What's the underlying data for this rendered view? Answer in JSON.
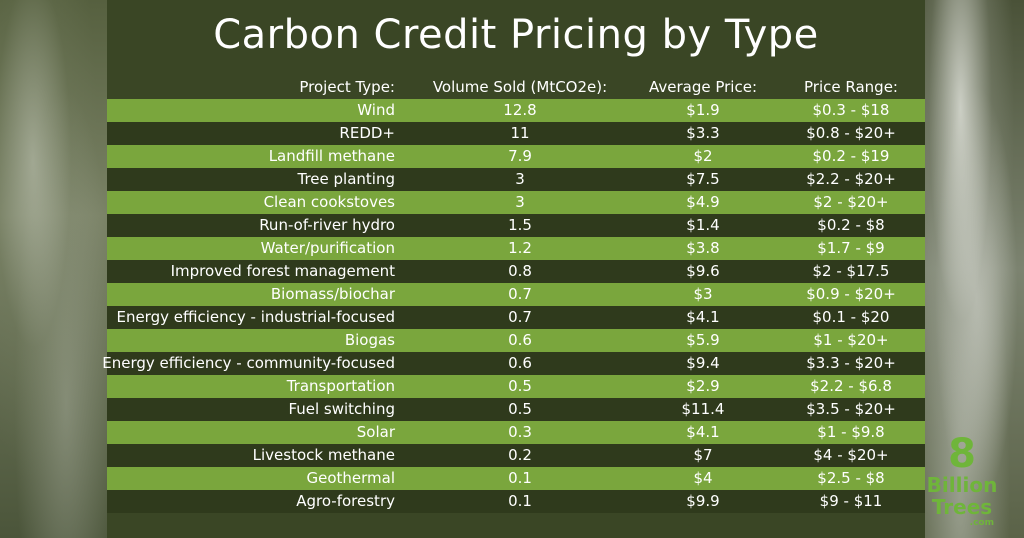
{
  "title": "Carbon Credit Pricing by Type",
  "headers": {
    "type": "Project Type:",
    "volume": "Volume Sold (MtCO2e):",
    "avg": "Average Price:",
    "range": "Price Range:"
  },
  "chart_data": {
    "type": "table",
    "title": "Carbon Credit Pricing by Type",
    "columns": [
      "Project Type:",
      "Volume Sold (MtCO2e):",
      "Average Price:",
      "Price Range:"
    ],
    "rows": [
      {
        "type": "Wind",
        "volume": "12.8",
        "avg": "$1.9",
        "range": "$0.3 - $18"
      },
      {
        "type": "REDD+",
        "volume": "11",
        "avg": "$3.3",
        "range": "$0.8 - $20+"
      },
      {
        "type": "Landfill methane",
        "volume": "7.9",
        "avg": "$2",
        "range": "$0.2 - $19"
      },
      {
        "type": "Tree planting",
        "volume": "3",
        "avg": "$7.5",
        "range": "$2.2 - $20+"
      },
      {
        "type": "Clean cookstoves",
        "volume": "3",
        "avg": "$4.9",
        "range": "$2 - $20+"
      },
      {
        "type": "Run-of-river hydro",
        "volume": "1.5",
        "avg": "$1.4",
        "range": "$0.2 - $8"
      },
      {
        "type": "Water/purification",
        "volume": "1.2",
        "avg": "$3.8",
        "range": "$1.7 - $9"
      },
      {
        "type": "Improved forest management",
        "volume": "0.8",
        "avg": "$9.6",
        "range": "$2 - $17.5"
      },
      {
        "type": "Biomass/biochar",
        "volume": "0.7",
        "avg": "$3",
        "range": "$0.9 - $20+"
      },
      {
        "type": "Energy efficiency - industrial-focused",
        "volume": "0.7",
        "avg": "$4.1",
        "range": "$0.1 - $20"
      },
      {
        "type": "Biogas",
        "volume": "0.6",
        "avg": "$5.9",
        "range": "$1 - $20+"
      },
      {
        "type": "Energy efficiency - community-focused",
        "volume": "0.6",
        "avg": "$9.4",
        "range": "$3.3 - $20+"
      },
      {
        "type": "Transportation",
        "volume": "0.5",
        "avg": "$2.9",
        "range": "$2.2 - $6.8"
      },
      {
        "type": "Fuel switching",
        "volume": "0.5",
        "avg": "$11.4",
        "range": "$3.5 - $20+"
      },
      {
        "type": "Solar",
        "volume": "0.3",
        "avg": "$4.1",
        "range": "$1 - $9.8"
      },
      {
        "type": "Livestock methane",
        "volume": "0.2",
        "avg": "$7",
        "range": "$4 - $20+"
      },
      {
        "type": "Geothermal",
        "volume": "0.1",
        "avg": "$4",
        "range": "$2.5 - $8"
      },
      {
        "type": "Agro-forestry",
        "volume": "0.1",
        "avg": "$9.9",
        "range": "$9 - $11"
      }
    ]
  },
  "logo": {
    "number": "8",
    "word1": "Billion",
    "word2": "Trees",
    "domain": ".com"
  },
  "colors": {
    "row_light": "#7aa63d",
    "row_dark": "#2f3a1c",
    "panel": "#3a4625",
    "logo_green": "#6fb53a"
  }
}
